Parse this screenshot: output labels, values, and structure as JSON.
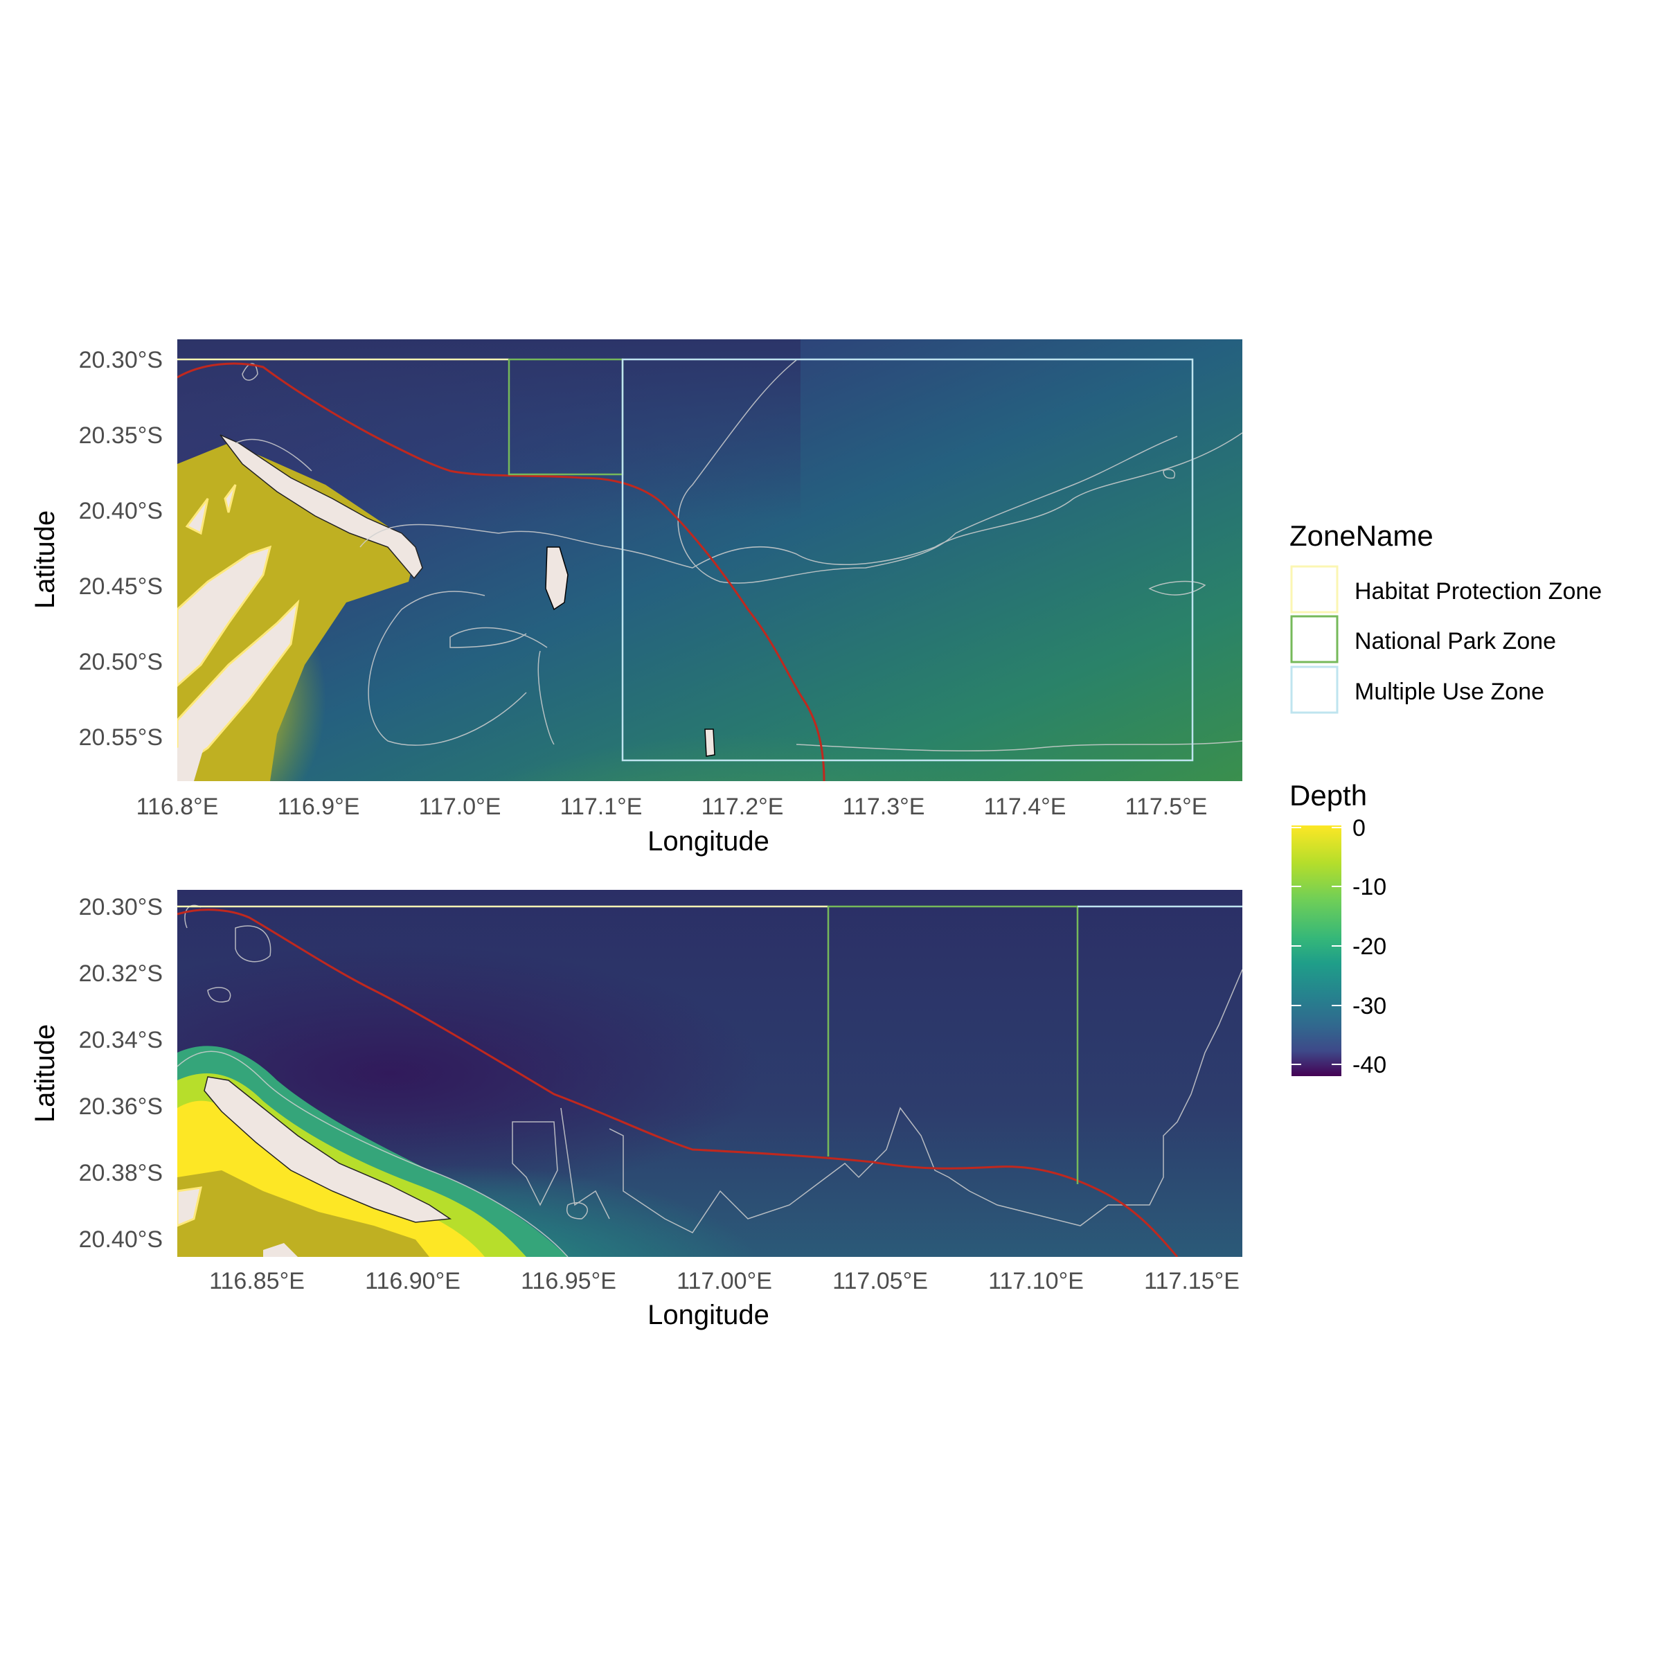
{
  "chart_data": [
    {
      "type": "heatmap",
      "title": "",
      "xlabel": "Longitude",
      "ylabel": "Latitude",
      "xlim": [
        116.8,
        117.555
      ],
      "ylim": [
        -20.58,
        -20.286
      ],
      "x_ticks": [
        {
          "value": 116.8,
          "label": "116.8°E"
        },
        {
          "value": 116.9,
          "label": "116.9°E"
        },
        {
          "value": 117.0,
          "label": "117.0°E"
        },
        {
          "value": 117.1,
          "label": "117.1°E"
        },
        {
          "value": 117.2,
          "label": "117.2°E"
        },
        {
          "value": 117.3,
          "label": "117.3°E"
        },
        {
          "value": 117.4,
          "label": "117.4°E"
        },
        {
          "value": 117.5,
          "label": "117.5°E"
        }
      ],
      "y_ticks": [
        {
          "value": -20.3,
          "label": "20.30°S"
        },
        {
          "value": -20.35,
          "label": "20.35°S"
        },
        {
          "value": -20.4,
          "label": "20.40°S"
        },
        {
          "value": -20.45,
          "label": "20.45°S"
        },
        {
          "value": -20.5,
          "label": "20.50°S"
        },
        {
          "value": -20.55,
          "label": "20.55°S"
        }
      ],
      "zones": [
        {
          "name": "Habitat Protection Zone",
          "xmin": 116.8,
          "xmax": 117.03,
          "ymin": -20.3,
          "ymax": -20.3
        },
        {
          "name": "National Park Zone",
          "xmin": 117.03,
          "xmax": 117.11,
          "ymin": -20.378,
          "ymax": -20.3
        },
        {
          "name": "Multiple Use Zone",
          "xmin": 117.11,
          "xmax": 117.52,
          "ymin": -20.563,
          "ymax": -20.3
        }
      ],
      "grid": false
    },
    {
      "type": "heatmap",
      "title": "",
      "xlabel": "Longitude",
      "ylabel": "Latitude",
      "xlim": [
        116.822,
        117.163
      ],
      "ylim": [
        -20.405,
        -20.295
      ],
      "x_ticks": [
        {
          "value": 116.85,
          "label": "116.85°E"
        },
        {
          "value": 116.9,
          "label": "116.90°E"
        },
        {
          "value": 116.95,
          "label": "116.95°E"
        },
        {
          "value": 117.0,
          "label": "117.00°E"
        },
        {
          "value": 117.05,
          "label": "117.05°E"
        },
        {
          "value": 117.1,
          "label": "117.10°E"
        },
        {
          "value": 117.15,
          "label": "117.15°E"
        }
      ],
      "y_ticks": [
        {
          "value": -20.3,
          "label": "20.30°S"
        },
        {
          "value": -20.32,
          "label": "20.32°S"
        },
        {
          "value": -20.34,
          "label": "20.34°S"
        },
        {
          "value": -20.36,
          "label": "20.36°S"
        },
        {
          "value": -20.38,
          "label": "20.38°S"
        },
        {
          "value": -20.4,
          "label": "20.40°S"
        }
      ],
      "zones": [
        {
          "name": "Habitat Protection Zone",
          "xmin": 116.822,
          "xmax": 117.033,
          "ymin": -20.3,
          "ymax": -20.3
        },
        {
          "name": "National Park Zone",
          "xmin": 117.033,
          "xmax": 117.113,
          "ymin": -20.383,
          "ymax": -20.3
        },
        {
          "name": "Multiple Use Zone",
          "xmin": 117.113,
          "xmax": 117.163,
          "ymin": -20.405,
          "ymax": -20.3
        }
      ],
      "grid": false
    }
  ],
  "legend": {
    "zone_title": "ZoneName",
    "zones": [
      {
        "label": "Habitat Protection Zone",
        "color": "#fbf6b3"
      },
      {
        "label": "National Park Zone",
        "color": "#76b95a"
      },
      {
        "label": "Multiple Use Zone",
        "color": "#bfe4ef"
      }
    ],
    "depth_title": "Depth",
    "depth_ticks": [
      "0",
      "-10",
      "-20",
      "-30",
      "-40"
    ],
    "depth_range": [
      -43,
      0
    ]
  },
  "colors": {
    "viridis_top": "#fde725",
    "viridis_mid": "#21908d",
    "viridis_bottom": "#440154",
    "land": "#efe6e1",
    "shallow_fill": "#bfb022",
    "boundary_line": "#c0281e",
    "contour": "#d8d8d8"
  }
}
